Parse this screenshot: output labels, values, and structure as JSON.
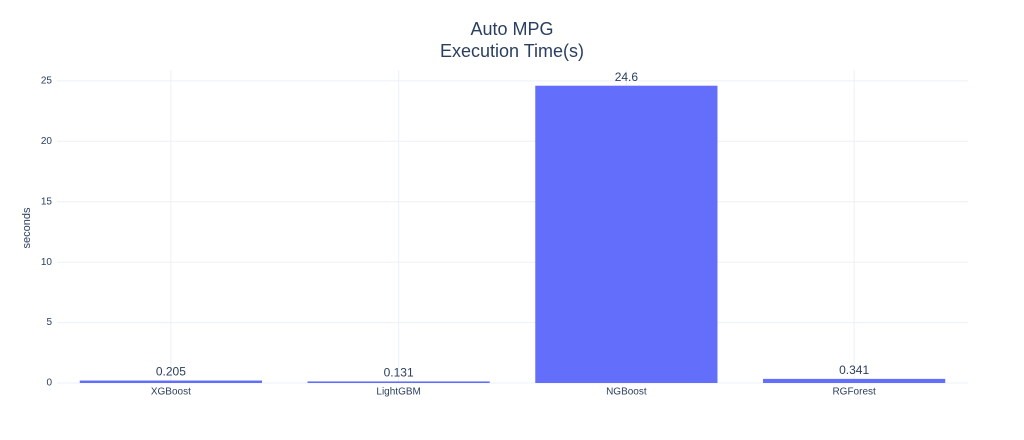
{
  "chart_data": {
    "type": "bar",
    "title": [
      "Auto MPG",
      "Execution Time(s)"
    ],
    "y_label": "seconds",
    "categories": [
      "XGBoost",
      "LightGBM",
      "NGBoost",
      "RGForest"
    ],
    "values": [
      0.205,
      0.131,
      24.6,
      0.341
    ],
    "color": "#636efa",
    "ylim": [
      0,
      25.9
    ],
    "yticks": [
      0,
      5,
      10,
      15,
      20,
      25
    ],
    "grid": true
  }
}
